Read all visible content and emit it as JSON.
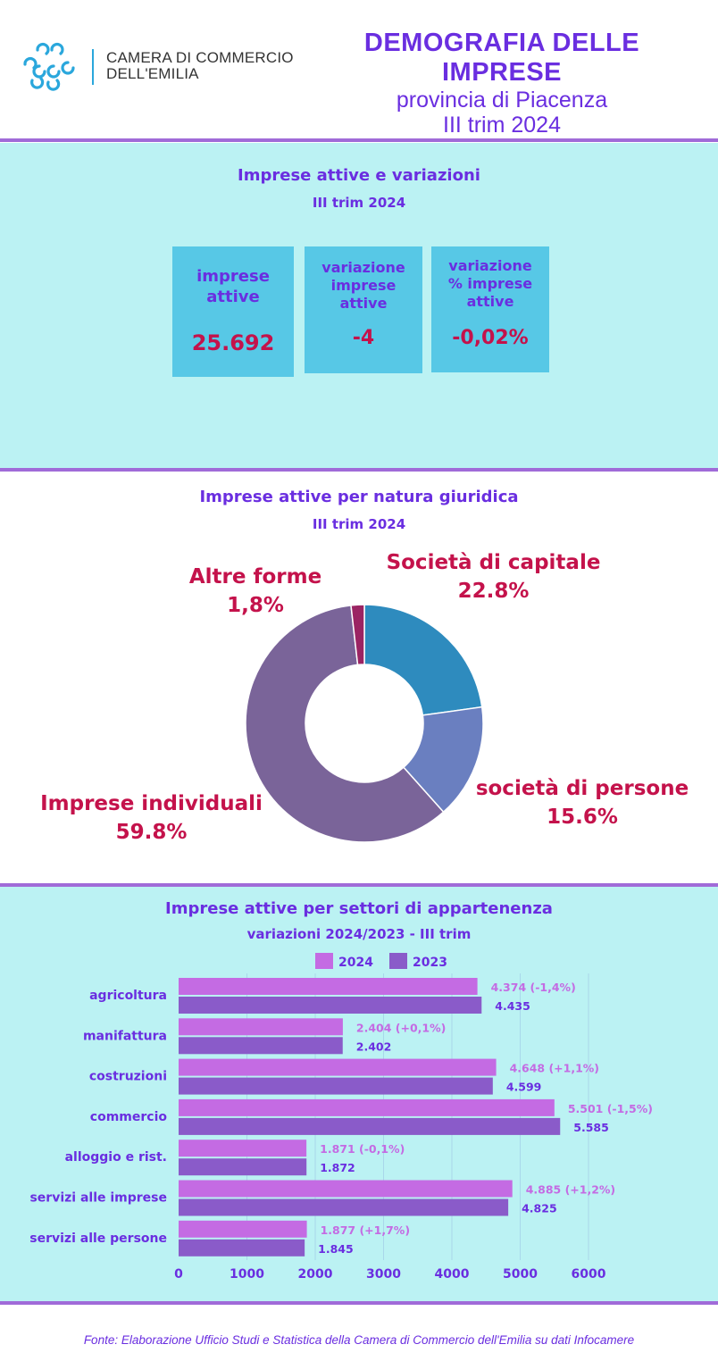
{
  "header": {
    "org_line1": "CAMERA DI COMMERCIO",
    "org_line2": "DELL'EMILIA",
    "title": "DEMOGRAFIA DELLE IMPRESE",
    "subtitle": "provincia di Piacenza",
    "period": "III trim 2024",
    "logo_icon": "chamber-of-commerce-logo"
  },
  "colors": {
    "title_purple": "#6a2ee0",
    "accent_red": "#c4124b",
    "section_bg": "#bbf2f3",
    "kpi_bg": "#57c8e6",
    "bar_2024": "#c46be3",
    "bar_2023": "#8a5bc9",
    "slice_capitale": "#2e8bbe",
    "slice_persone": "#6a7fc0",
    "slice_individuali": "#7a6499",
    "slice_altre": "#9b2463"
  },
  "kpis": {
    "title": "Imprese attive e variazioni",
    "period": "III trim 2024",
    "items": [
      {
        "label_lines": [
          "imprese",
          "attive"
        ],
        "value": "25.692"
      },
      {
        "label_lines": [
          "variazione",
          "imprese",
          "attive"
        ],
        "value": "-4"
      },
      {
        "label_lines": [
          "variazione",
          "% imprese",
          "attive"
        ],
        "value": "-0,02%"
      }
    ]
  },
  "natura": {
    "title": "Imprese attive per natura giuridica",
    "period": "III trim 2024",
    "labels": {
      "capitale_name": "Società di capitale",
      "capitale_pct": "22.8%",
      "persone_name": "società di persone",
      "persone_pct": "15.6%",
      "individuali_name": "Imprese individuali",
      "individuali_pct": "59.8%",
      "altre_text": "Altre forme 1,8%"
    }
  },
  "settori": {
    "title": "Imprese attive per settori di appartenenza",
    "subtitle": "variazioni 2024/2023 - III trim"
  },
  "chart_data": [
    {
      "type": "pie",
      "title": "Imprese attive per natura giuridica",
      "subtitle": "III trim 2024",
      "donut": true,
      "slices": [
        {
          "name": "Società di capitale",
          "value": 22.8
        },
        {
          "name": "società di persone",
          "value": 15.6
        },
        {
          "name": "Imprese individuali",
          "value": 59.8
        },
        {
          "name": "Altre forme",
          "value": 1.8
        }
      ]
    },
    {
      "type": "bar",
      "orientation": "horizontal",
      "title": "Imprese attive per settori di appartenenza",
      "subtitle": "variazioni 2024/2023 - III trim",
      "categories": [
        "agricoltura",
        "manifattura",
        "costruzioni",
        "commercio",
        "alloggio e rist.",
        "servizi alle imprese",
        "servizi alle persone"
      ],
      "series": [
        {
          "name": "2024",
          "values": [
            4374,
            2404,
            4648,
            5501,
            1871,
            4885,
            1877
          ],
          "labels": [
            "4.374 (-1,4%)",
            "2.404 (+0,1%)",
            "4.648 (+1,1%)",
            "5.501 (-1,5%)",
            "1.871 (-0,1%)",
            "4.885 (+1,2%)",
            "1.877 (+1,7%)"
          ]
        },
        {
          "name": "2023",
          "values": [
            4435,
            2402,
            4599,
            5585,
            1872,
            4825,
            1845
          ],
          "labels": [
            "4.435",
            "2.402",
            "4.599",
            "5.585",
            "1.872",
            "4.825",
            "1.845"
          ]
        }
      ],
      "xlim": [
        0,
        6500
      ],
      "xticks": [
        0,
        1000,
        2000,
        3000,
        4000,
        5000,
        6000
      ],
      "grid": true,
      "legend": "top"
    }
  ],
  "footer": {
    "source": "Fonte: Elaborazione Ufficio Studi e Statistica della Camera di Commercio dell'Emilia su dati Infocamere"
  }
}
